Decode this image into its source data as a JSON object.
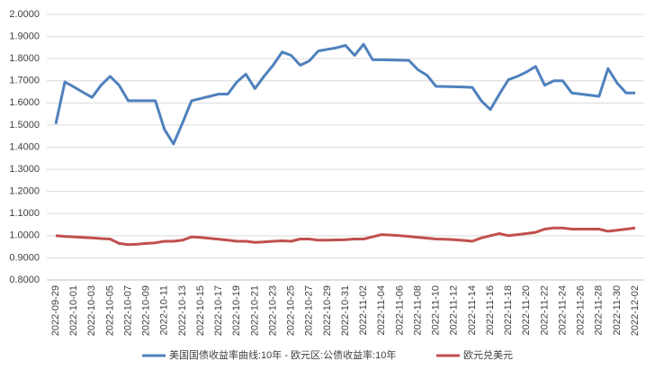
{
  "chart_data": {
    "type": "line",
    "categories": [
      "2022-09-29",
      null,
      "2022-10-01",
      null,
      "2022-10-03",
      null,
      "2022-10-05",
      null,
      "2022-10-07",
      null,
      "2022-10-09",
      null,
      "2022-10-11",
      null,
      "2022-10-13",
      null,
      "2022-10-15",
      null,
      "2022-10-17",
      null,
      "2022-10-19",
      null,
      "2022-10-21",
      null,
      "2022-10-23",
      null,
      "2022-10-25",
      null,
      "2022-10-27",
      null,
      "2022-10-29",
      null,
      "2022-10-31",
      null,
      "2022-11-02",
      null,
      "2022-11-04",
      null,
      "2022-11-06",
      null,
      "2022-11-08",
      null,
      "2022-11-10",
      null,
      "2022-11-12",
      null,
      "2022-11-14",
      null,
      "2022-11-16",
      null,
      "2022-11-18",
      null,
      "2022-11-20",
      null,
      "2022-11-22",
      null,
      "2022-11-24",
      null,
      "2022-11-26",
      null,
      "2022-11-28",
      null,
      "2022-11-30",
      null,
      "2022-12-02"
    ],
    "series": [
      {
        "name": "美国国债收益率曲线:10年 - 欧元区:公债收益率:10年",
        "color": "#4f81bd",
        "values": [
          1.505,
          1.695,
          1.672,
          1.648,
          1.625,
          1.68,
          1.72,
          1.68,
          1.61,
          1.61,
          1.61,
          1.61,
          1.48,
          1.415,
          1.51,
          1.61,
          1.62,
          1.63,
          1.64,
          1.64,
          1.695,
          1.73,
          1.665,
          1.72,
          1.77,
          1.83,
          1.815,
          1.77,
          1.79,
          1.835,
          1.842,
          1.849,
          1.86,
          1.815,
          1.865,
          1.795,
          1.795,
          1.794,
          1.793,
          1.792,
          1.75,
          1.725,
          1.675,
          1.674,
          1.673,
          1.672,
          1.67,
          1.61,
          1.57,
          1.64,
          1.705,
          1.72,
          1.74,
          1.765,
          1.68,
          1.7,
          1.7,
          1.645,
          1.64,
          1.635,
          1.63,
          1.755,
          1.69,
          1.645,
          1.645
        ]
      },
      {
        "name": "欧元兑美元",
        "color": "#c0504d",
        "values": [
          1.0,
          0.997,
          0.995,
          0.992,
          0.99,
          0.987,
          0.985,
          0.965,
          0.96,
          0.962,
          0.965,
          0.968,
          0.975,
          0.975,
          0.98,
          0.995,
          0.992,
          0.988,
          0.984,
          0.98,
          0.975,
          0.975,
          0.97,
          0.972,
          0.975,
          0.977,
          0.975,
          0.985,
          0.985,
          0.98,
          0.98,
          0.981,
          0.982,
          0.985,
          0.985,
          0.995,
          1.005,
          1.003,
          1.0,
          0.997,
          0.993,
          0.989,
          0.985,
          0.984,
          0.982,
          0.979,
          0.975,
          0.99,
          1.0,
          1.01,
          1.0,
          1.005,
          1.01,
          1.015,
          1.03,
          1.035,
          1.035,
          1.03,
          1.03,
          1.03,
          1.03,
          1.02,
          1.025,
          1.03,
          1.035
        ]
      }
    ],
    "ylim": [
      0.8,
      2.0
    ],
    "yticks": [
      {
        "value": 0.8,
        "label": "0.8000"
      },
      {
        "value": 0.9,
        "label": "0.9000"
      },
      {
        "value": 1.0,
        "label": "1.0000"
      },
      {
        "value": 1.1,
        "label": "1.1000"
      },
      {
        "value": 1.2,
        "label": "1.2000"
      },
      {
        "value": 1.3,
        "label": "1.3000"
      },
      {
        "value": 1.4,
        "label": "1.4000"
      },
      {
        "value": 1.5,
        "label": "1.5000"
      },
      {
        "value": 1.6,
        "label": "1.6000"
      },
      {
        "value": 1.7,
        "label": "1.7000"
      },
      {
        "value": 1.8,
        "label": "1.8000"
      },
      {
        "value": 1.9,
        "label": "1.9000"
      },
      {
        "value": 2.0,
        "label": "2.0000"
      }
    ],
    "grid": true
  }
}
